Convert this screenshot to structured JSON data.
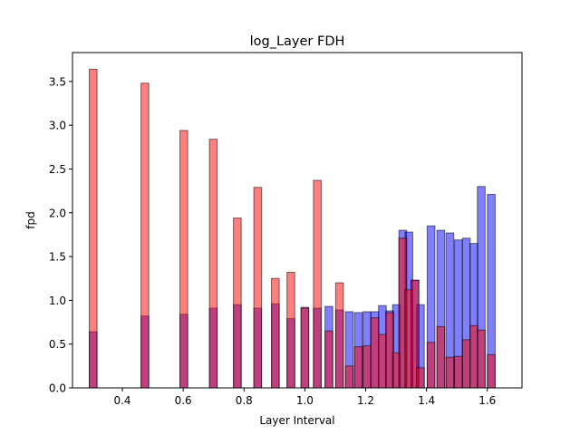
{
  "chart_data": {
    "type": "bar",
    "title": "log_Layer  FDH",
    "xlabel": "Layer Interval",
    "ylabel": "fpd",
    "xlim": [
      0.236,
      1.714
    ],
    "ylim": [
      0,
      3.83
    ],
    "xticks": [
      0.4,
      0.6,
      0.8,
      1.0,
      1.2,
      1.4,
      1.6
    ],
    "xtick_labels": [
      "0.4",
      "0.6",
      "0.8",
      "1.0",
      "1.2",
      "1.4",
      "1.6"
    ],
    "yticks": [
      0.0,
      0.5,
      1.0,
      1.5,
      2.0,
      2.5,
      3.0,
      3.5
    ],
    "ytick_labels": [
      "0.0",
      "0.5",
      "1.0",
      "1.5",
      "2.0",
      "2.5",
      "3.0",
      "3.5"
    ],
    "bin_width": 0.0254,
    "grid": false,
    "legend": "none",
    "series": [
      {
        "color": "#0000ff",
        "bins": [
          {
            "x": 0.304,
            "y": 0.64
          },
          {
            "x": 0.474,
            "y": 0.82
          },
          {
            "x": 0.602,
            "y": 0.84
          },
          {
            "x": 0.699,
            "y": 0.91
          },
          {
            "x": 0.778,
            "y": 0.95
          },
          {
            "x": 0.845,
            "y": 0.91
          },
          {
            "x": 0.903,
            "y": 0.96
          },
          {
            "x": 0.954,
            "y": 0.79
          },
          {
            "x": 1.0,
            "y": 0.92
          },
          {
            "x": 1.041,
            "y": 0.91
          },
          {
            "x": 1.079,
            "y": 0.93
          },
          {
            "x": 1.114,
            "y": 0.89
          },
          {
            "x": 1.146,
            "y": 0.87
          },
          {
            "x": 1.176,
            "y": 0.86
          },
          {
            "x": 1.204,
            "y": 0.87
          },
          {
            "x": 1.23,
            "y": 0.87
          },
          {
            "x": 1.255,
            "y": 0.94
          },
          {
            "x": 1.279,
            "y": 0.88
          },
          {
            "x": 1.301,
            "y": 0.95
          },
          {
            "x": 1.322,
            "y": 1.8
          },
          {
            "x": 1.342,
            "y": 1.78
          },
          {
            "x": 1.362,
            "y": 1.23
          },
          {
            "x": 1.38,
            "y": 0.95
          },
          {
            "x": 1.415,
            "y": 1.85
          },
          {
            "x": 1.447,
            "y": 1.8
          },
          {
            "x": 1.477,
            "y": 1.77
          },
          {
            "x": 1.505,
            "y": 1.69
          },
          {
            "x": 1.531,
            "y": 1.71
          },
          {
            "x": 1.556,
            "y": 1.65
          },
          {
            "x": 1.58,
            "y": 2.3
          },
          {
            "x": 1.613,
            "y": 2.21
          }
        ]
      },
      {
        "color": "#ff0000",
        "bins": [
          {
            "x": 0.304,
            "y": 3.64
          },
          {
            "x": 0.474,
            "y": 3.48
          },
          {
            "x": 0.602,
            "y": 2.94
          },
          {
            "x": 0.699,
            "y": 2.84
          },
          {
            "x": 0.778,
            "y": 1.94
          },
          {
            "x": 0.845,
            "y": 2.29
          },
          {
            "x": 0.903,
            "y": 1.25
          },
          {
            "x": 0.954,
            "y": 1.32
          },
          {
            "x": 1.0,
            "y": 0.91
          },
          {
            "x": 1.041,
            "y": 2.37
          },
          {
            "x": 1.079,
            "y": 0.65
          },
          {
            "x": 1.114,
            "y": 1.2
          },
          {
            "x": 1.146,
            "y": 0.25
          },
          {
            "x": 1.176,
            "y": 0.47
          },
          {
            "x": 1.204,
            "y": 0.48
          },
          {
            "x": 1.23,
            "y": 0.8
          },
          {
            "x": 1.255,
            "y": 0.61
          },
          {
            "x": 1.279,
            "y": 0.86
          },
          {
            "x": 1.301,
            "y": 0.4
          },
          {
            "x": 1.322,
            "y": 1.71
          },
          {
            "x": 1.342,
            "y": 1.12
          },
          {
            "x": 1.362,
            "y": 1.23
          },
          {
            "x": 1.38,
            "y": 0.23
          },
          {
            "x": 1.415,
            "y": 0.52
          },
          {
            "x": 1.447,
            "y": 0.7
          },
          {
            "x": 1.477,
            "y": 0.35
          },
          {
            "x": 1.505,
            "y": 0.36
          },
          {
            "x": 1.531,
            "y": 0.55
          },
          {
            "x": 1.556,
            "y": 0.71
          },
          {
            "x": 1.58,
            "y": 0.66
          },
          {
            "x": 1.613,
            "y": 0.38
          }
        ]
      }
    ]
  }
}
